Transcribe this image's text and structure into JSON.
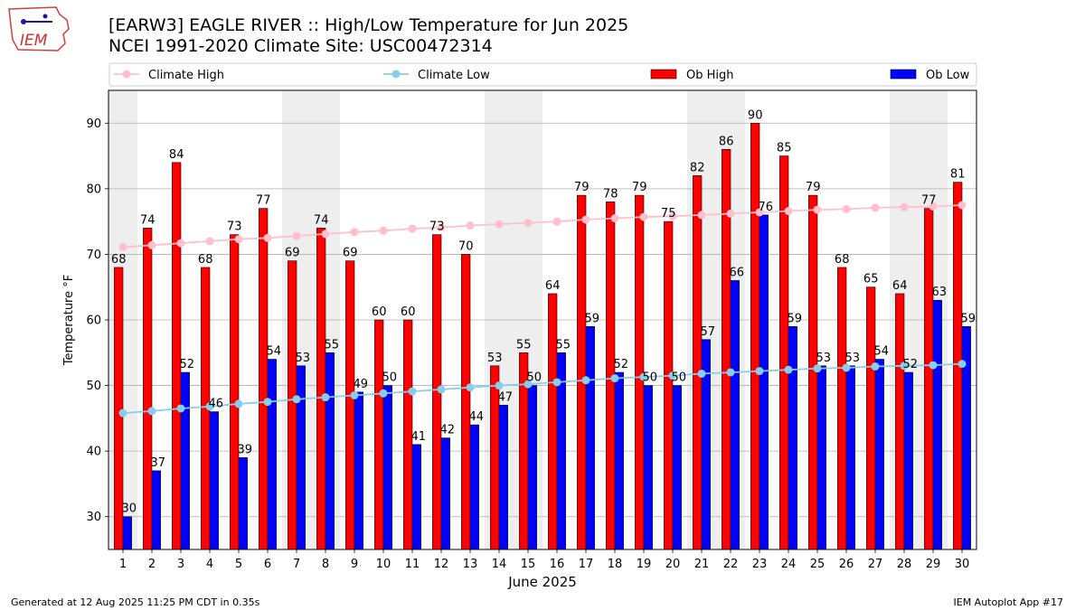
{
  "title_line1": "[EARW3] EAGLE RIVER :: High/Low Temperature for Jun 2025",
  "title_line2": "NCEI 1991-2020 Climate Site: USC00472314",
  "logo_text": "IEM",
  "footer_left": "Generated at 12 Aug 2025 11:25 PM CDT in 0.35s",
  "footer_right": "IEM Autoplot App #17",
  "colors": {
    "ob_high": "#ff0000",
    "ob_low": "#0000ff",
    "climate_high": "#ffc0cb",
    "climate_low": "#87ceeb",
    "weekend_shade": "#eeeeee",
    "grid": "#b0b0b0"
  },
  "chart_data": {
    "type": "bar",
    "xlabel": "June 2025",
    "ylabel": "Temperature °F",
    "ylim": [
      25,
      95
    ],
    "yticks": [
      30,
      40,
      50,
      60,
      70,
      80,
      90
    ],
    "grid": "horizontal",
    "legend_position": "top",
    "categories": [
      "1",
      "2",
      "3",
      "4",
      "5",
      "6",
      "7",
      "8",
      "9",
      "10",
      "11",
      "12",
      "13",
      "14",
      "15",
      "16",
      "17",
      "18",
      "19",
      "20",
      "21",
      "22",
      "23",
      "24",
      "25",
      "26",
      "27",
      "28",
      "29",
      "30"
    ],
    "shaded_days": [
      1,
      7,
      8,
      14,
      15,
      21,
      22,
      28,
      29
    ],
    "series": [
      {
        "name": "Ob High",
        "kind": "bar",
        "values": [
          68,
          74,
          84,
          68,
          73,
          77,
          69,
          74,
          69,
          60,
          60,
          73,
          70,
          53,
          55,
          64,
          79,
          78,
          79,
          75,
          82,
          86,
          90,
          85,
          79,
          68,
          65,
          64,
          77,
          81
        ]
      },
      {
        "name": "Ob Low",
        "kind": "bar",
        "values": [
          30,
          37,
          52,
          46,
          39,
          54,
          53,
          55,
          49,
          50,
          41,
          42,
          44,
          47,
          50,
          55,
          59,
          52,
          50,
          50,
          57,
          66,
          76,
          59,
          53,
          53,
          54,
          52,
          63,
          59
        ]
      },
      {
        "name": "Climate High",
        "kind": "line",
        "values": [
          71.1,
          71.4,
          71.7,
          72.0,
          72.3,
          72.5,
          72.8,
          73.1,
          73.4,
          73.6,
          73.9,
          74.1,
          74.4,
          74.6,
          74.8,
          75.0,
          75.3,
          75.5,
          75.7,
          75.8,
          76.0,
          76.2,
          76.4,
          76.6,
          76.8,
          76.9,
          77.1,
          77.2,
          77.3,
          77.5
        ]
      },
      {
        "name": "Climate Low",
        "kind": "line",
        "values": [
          45.8,
          46.1,
          46.5,
          46.8,
          47.2,
          47.5,
          47.9,
          48.2,
          48.5,
          48.8,
          49.1,
          49.4,
          49.7,
          50.0,
          50.2,
          50.5,
          50.8,
          51.1,
          51.3,
          51.5,
          51.8,
          52.0,
          52.2,
          52.4,
          52.6,
          52.7,
          52.9,
          53.0,
          53.1,
          53.3
        ]
      }
    ]
  }
}
